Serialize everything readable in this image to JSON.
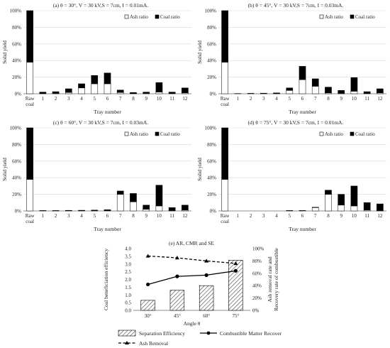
{
  "chart_data": [
    {
      "type": "bar",
      "title": "(a) θ = 30°, V = 30 kV,S = 7cm, I = 0.01mA.",
      "xlabel": "Tray number",
      "ylabel": "Solid yield",
      "ylim": [
        0,
        100
      ],
      "y_ticks": [
        "0%",
        "20%",
        "40%",
        "60%",
        "80%",
        "100%"
      ],
      "categories": [
        "Raw\ncoal",
        "1",
        "2",
        "3",
        "4",
        "5",
        "6",
        "7",
        "8",
        "9",
        "10",
        "11",
        "12"
      ],
      "legend": "top-right",
      "series": [
        {
          "name": "Ash ratio",
          "values": [
            38,
            0.3,
            0.5,
            1.5,
            7,
            12,
            12,
            1.5,
            0.3,
            0.5,
            2,
            0.3,
            1
          ]
        },
        {
          "name": "Coal ratio",
          "values": [
            62,
            1.7,
            2,
            4.5,
            5,
            10,
            13,
            3,
            1.2,
            1.5,
            11.5,
            1.7,
            6
          ]
        }
      ]
    },
    {
      "type": "bar",
      "title": "(b) θ = 45°, V = 30 kV,S = 7cm, I = 0.03mA.",
      "xlabel": "Tray number",
      "ylabel": "Solid yield",
      "ylim": [
        0,
        100
      ],
      "y_ticks": [
        "0%",
        "20%",
        "40%",
        "60%",
        "80%",
        "100%"
      ],
      "categories": [
        "Raw\ncoal",
        "1",
        "2",
        "3",
        "4",
        "5",
        "6",
        "7",
        "8",
        "9",
        "10",
        "11",
        "12"
      ],
      "legend": "top-right",
      "series": [
        {
          "name": "Ash ratio",
          "values": [
            38,
            0,
            0.2,
            0.2,
            0.4,
            4,
            17,
            9,
            1,
            0.5,
            3,
            0.3,
            1
          ]
        },
        {
          "name": "Coal ratio",
          "values": [
            62,
            0.3,
            0.3,
            0.5,
            0.6,
            3,
            16,
            9,
            7,
            3.5,
            16.5,
            2.2,
            5
          ]
        }
      ]
    },
    {
      "type": "bar",
      "title": "(c) θ = 60°, V = 30 kV,S = 7cm, I = 0.03mA.",
      "xlabel": "Tray number",
      "ylabel": "Solid yield",
      "ylim": [
        0,
        100
      ],
      "y_ticks": [
        "0%",
        "20%",
        "40%",
        "60%",
        "80%",
        "100%"
      ],
      "categories": [
        "Raw\ncoal",
        "1",
        "2",
        "3",
        "4",
        "5",
        "6",
        "7",
        "8",
        "9",
        "10",
        "11",
        "12"
      ],
      "legend": "top-right",
      "series": [
        {
          "name": "Ash ratio",
          "values": [
            38,
            0.2,
            0.2,
            0.3,
            0.3,
            0.4,
            0.5,
            20,
            11,
            2,
            6,
            0.5,
            1
          ]
        },
        {
          "name": "Coal ratio",
          "values": [
            62,
            0.3,
            0.3,
            0.4,
            0.5,
            0.6,
            1,
            4,
            10,
            5,
            25,
            3.5,
            6
          ]
        }
      ]
    },
    {
      "type": "bar",
      "title": "(d) θ = 75°, V = 30 kV,S = 7cm, I = 0.01mA.",
      "xlabel": "Tray number",
      "ylabel": "Solid yield",
      "ylim": [
        0,
        100
      ],
      "y_ticks": [
        "0%",
        "20%",
        "40%",
        "60%",
        "80%",
        "100%"
      ],
      "categories": [
        "Raw\ncoal",
        "1",
        "2",
        "3",
        "4",
        "5",
        "6",
        "7",
        "8",
        "9",
        "10",
        "11",
        "12"
      ],
      "legend": "top-right",
      "series": [
        {
          "name": "Ash ratio",
          "values": [
            38,
            0,
            0,
            0,
            0,
            0.3,
            0.3,
            4,
            20,
            7,
            6,
            1,
            0.5
          ]
        },
        {
          "name": "Coal ratio",
          "values": [
            62,
            0,
            0,
            0,
            0,
            0.2,
            0.2,
            0.5,
            5,
            13,
            24,
            9,
            8
          ]
        }
      ]
    },
    {
      "type": "bar",
      "title": "(e) AR, CMR and SE",
      "xlabel": "Angle θ",
      "ylabel": "Coal beneficiation efficiency",
      "y2label": "Ash removal rate and\nRecovery rate of combustible",
      "ylim": [
        0,
        4.0
      ],
      "y_ticks": [
        "0.0",
        "0.5",
        "1.0",
        "1.5",
        "2.0",
        "2.5",
        "3.0",
        "3.5",
        "4.0"
      ],
      "y2lim": [
        0,
        100
      ],
      "y2_ticks": [
        "0%",
        "20%",
        "40%",
        "60%",
        "80%",
        "100%"
      ],
      "categories": [
        "30°",
        "45°",
        "60°",
        "75°"
      ],
      "legend": "bottom",
      "series": [
        {
          "name": "Separation Efficiency",
          "kind": "bar",
          "axis": "left",
          "values": [
            0.65,
            1.3,
            1.6,
            3.25
          ]
        },
        {
          "name": "Combustible Matter Recover",
          "kind": "line",
          "marker": "circle",
          "axis": "right",
          "values": [
            42,
            55,
            57,
            64
          ]
        },
        {
          "name": "Ash Removal",
          "kind": "line",
          "style": "dashed",
          "marker": "triangle",
          "axis": "right",
          "values": [
            88,
            85,
            80,
            76
          ]
        }
      ]
    }
  ]
}
